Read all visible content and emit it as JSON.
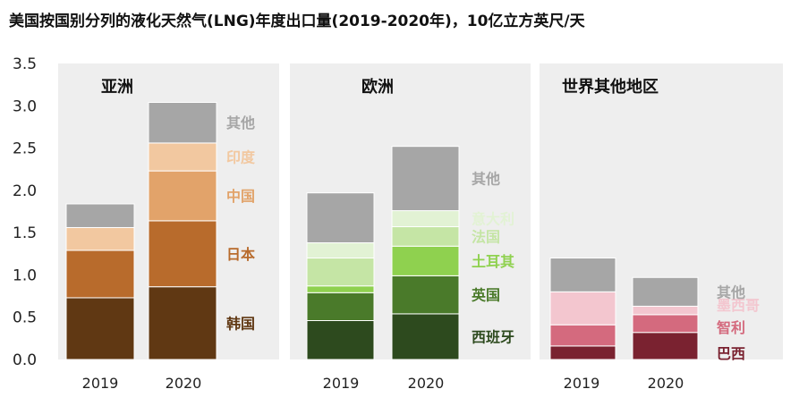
{
  "chart_data": {
    "type": "bar",
    "stacked": true,
    "title": "美国按国别分列的液化天然气(LNG)年度出口量(2019-2020年)，10亿立方英尺/天",
    "ylim": [
      0,
      3.5
    ],
    "yticks": [
      "0.0",
      "0.5",
      "1.0",
      "1.5",
      "2.0",
      "2.5",
      "3.0",
      "3.5"
    ],
    "panels": [
      {
        "name": "亚洲",
        "categories": [
          "2019",
          "2020"
        ],
        "series": [
          {
            "name": "韩国",
            "values": [
              0.73,
              0.86
            ],
            "color": "#603813"
          },
          {
            "name": "日本",
            "values": [
              0.56,
              0.78
            ],
            "color": "#b86b2c"
          },
          {
            "name": "中国",
            "values": [
              0.0,
              0.59
            ],
            "color": "#e2a36a"
          },
          {
            "name": "印度",
            "values": [
              0.27,
              0.33
            ],
            "color": "#f2c8a0"
          },
          {
            "name": "其他",
            "values": [
              0.28,
              0.48
            ],
            "color": "#a6a6a6"
          }
        ]
      },
      {
        "name": "欧洲",
        "categories": [
          "2019",
          "2020"
        ],
        "series": [
          {
            "name": "西班牙",
            "values": [
              0.46,
              0.54
            ],
            "color": "#2d4a1e"
          },
          {
            "name": "英国",
            "values": [
              0.33,
              0.45
            ],
            "color": "#4a7a2a"
          },
          {
            "name": "土耳其",
            "values": [
              0.08,
              0.35
            ],
            "color": "#8fd14f"
          },
          {
            "name": "法国",
            "values": [
              0.33,
              0.23
            ],
            "color": "#c5e5a5"
          },
          {
            "name": "意大利",
            "values": [
              0.18,
              0.19
            ],
            "color": "#e2f2d4"
          },
          {
            "name": "其他",
            "values": [
              0.59,
              0.76
            ],
            "color": "#a6a6a6"
          }
        ]
      },
      {
        "name": "世界其他地区",
        "categories": [
          "2019",
          "2020"
        ],
        "series": [
          {
            "name": "巴西",
            "values": [
              0.16,
              0.32
            ],
            "color": "#7a2230"
          },
          {
            "name": "智利",
            "values": [
              0.25,
              0.21
            ],
            "color": "#d46a7e"
          },
          {
            "name": "墨西哥",
            "values": [
              0.39,
              0.1
            ],
            "color": "#f3c6cf"
          },
          {
            "name": "其他",
            "values": [
              0.4,
              0.34
            ],
            "color": "#a6a6a6"
          }
        ]
      }
    ]
  }
}
